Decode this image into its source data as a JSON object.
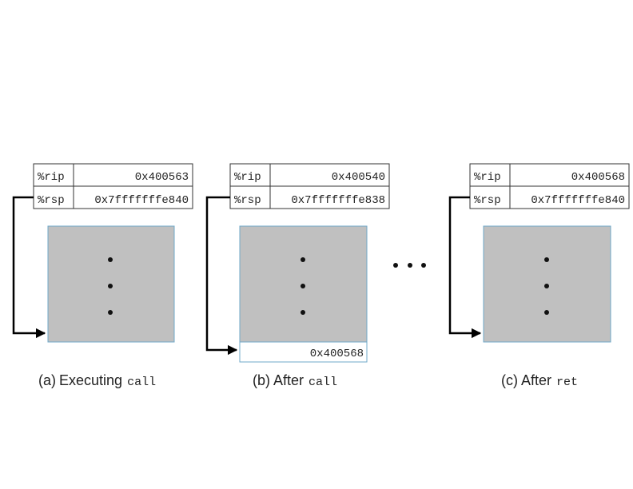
{
  "panels": [
    {
      "registers": [
        {
          "name": "%rip",
          "value": "0x400563"
        },
        {
          "name": "%rsp",
          "value": "0x7fffffffe840"
        }
      ],
      "stack_entry": "",
      "caption": {
        "prefix": "(a)",
        "text": "Executing",
        "code": "call"
      }
    },
    {
      "registers": [
        {
          "name": "%rip",
          "value": "0x400540"
        },
        {
          "name": "%rsp",
          "value": "0x7fffffffe838"
        }
      ],
      "stack_entry": "0x400568",
      "caption": {
        "prefix": "(b)",
        "text": "After",
        "code": "call"
      }
    },
    {
      "registers": [
        {
          "name": "%rip",
          "value": "0x400568"
        },
        {
          "name": "%rsp",
          "value": "0x7fffffffe840"
        }
      ],
      "stack_entry": "",
      "caption": {
        "prefix": "(c)",
        "text": "After",
        "code": "ret"
      }
    }
  ],
  "colors": {
    "stack_fill": "#c0c0c0",
    "stack_border": "#6fa8c8",
    "table_border": "#333333",
    "arrow": "#000000",
    "text": "#222222"
  }
}
